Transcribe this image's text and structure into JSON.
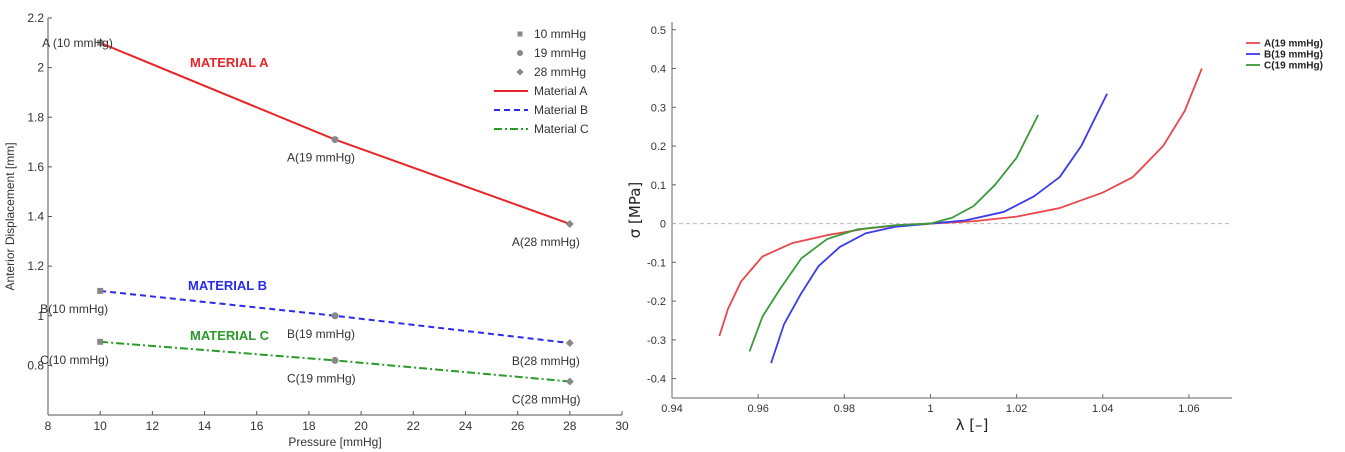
{
  "chart_data": [
    {
      "type": "line",
      "xlabel": "Pressure [mmHg]",
      "ylabel": "Anterior Displacement [mm]",
      "xlim": [
        8,
        30
      ],
      "ylim": [
        0.6,
        2.2
      ],
      "xticks": [
        8,
        10,
        12,
        14,
        16,
        18,
        20,
        22,
        24,
        26,
        28,
        30
      ],
      "yticks": [
        0.8,
        1,
        1.2,
        1.4,
        1.6,
        1.8,
        2,
        2.2
      ],
      "x": [
        10,
        19,
        28
      ],
      "grid": false,
      "legend_position": "top-right",
      "series": [
        {
          "name": "Material A",
          "color": "#e8262a",
          "dash": "solid",
          "values": [
            2.1,
            1.71,
            1.37
          ],
          "point_labels": [
            "A (10 mmHg)",
            "A(19 mmHg)",
            "A(28 mmHg)"
          ],
          "annotation": "MATERIAL A"
        },
        {
          "name": "Material B",
          "color": "#2b2bea",
          "dash": "dashed",
          "values": [
            1.1,
            1.0,
            0.89
          ],
          "point_labels": [
            "B(10 mmHg)",
            "B(19 mmHg)",
            "B(28 mmHg)"
          ],
          "annotation": "MATERIAL B"
        },
        {
          "name": "Material C",
          "color": "#2a9a2a",
          "dash": "dashdot",
          "values": [
            0.895,
            0.82,
            0.735
          ],
          "point_labels": [
            "C(10 mmHg)",
            "C(19 mmHg)",
            "C(28 mmHg)"
          ],
          "annotation": "MATERIAL C"
        }
      ],
      "marker_legend": [
        "10 mmHg",
        "19 mmHg",
        "28 mmHg"
      ],
      "legend_entries": [
        "10 mmHg",
        "19 mmHg",
        "28 mmHg",
        "Material A",
        "Material B",
        "Material C"
      ]
    },
    {
      "type": "line",
      "xlabel": "λ [–]",
      "ylabel": "σ [MPa]",
      "xlim": [
        0.94,
        1.07
      ],
      "ylim": [
        -0.45,
        0.52
      ],
      "xticks": [
        0.94,
        0.96,
        0.98,
        1,
        1.02,
        1.04,
        1.06
      ],
      "yticks": [
        -0.4,
        -0.3,
        -0.2,
        -0.1,
        0,
        0.1,
        0.2,
        0.3,
        0.4,
        0.5
      ],
      "zero_line": true,
      "grid": false,
      "legend_position": "top-right",
      "series": [
        {
          "name": "A(19 mmHg)",
          "color": "#e8474d",
          "x": [
            0.951,
            0.953,
            0.956,
            0.961,
            0.968,
            0.976,
            0.985,
            0.993,
            1.0,
            1.01,
            1.02,
            1.03,
            1.04,
            1.047,
            1.054,
            1.059,
            1.063
          ],
          "y": [
            -0.29,
            -0.22,
            -0.15,
            -0.085,
            -0.05,
            -0.03,
            -0.013,
            -0.004,
            0,
            0.006,
            0.018,
            0.04,
            0.08,
            0.12,
            0.2,
            0.29,
            0.4
          ]
        },
        {
          "name": "B(19 mmHg)",
          "color": "#3b3be8",
          "x": [
            0.963,
            0.966,
            0.97,
            0.974,
            0.979,
            0.985,
            0.992,
            1.0,
            1.008,
            1.017,
            1.024,
            1.03,
            1.035,
            1.041
          ],
          "y": [
            -0.36,
            -0.26,
            -0.18,
            -0.11,
            -0.06,
            -0.025,
            -0.008,
            0,
            0.008,
            0.03,
            0.07,
            0.12,
            0.2,
            0.335
          ]
        },
        {
          "name": "C(19 mmHg)",
          "color": "#3a9a3a",
          "x": [
            0.958,
            0.961,
            0.965,
            0.97,
            0.976,
            0.983,
            0.992,
            1.0,
            1.005,
            1.01,
            1.015,
            1.02,
            1.025
          ],
          "y": [
            -0.33,
            -0.24,
            -0.17,
            -0.09,
            -0.04,
            -0.015,
            -0.004,
            0,
            0.015,
            0.045,
            0.1,
            0.17,
            0.28
          ]
        }
      ]
    }
  ]
}
